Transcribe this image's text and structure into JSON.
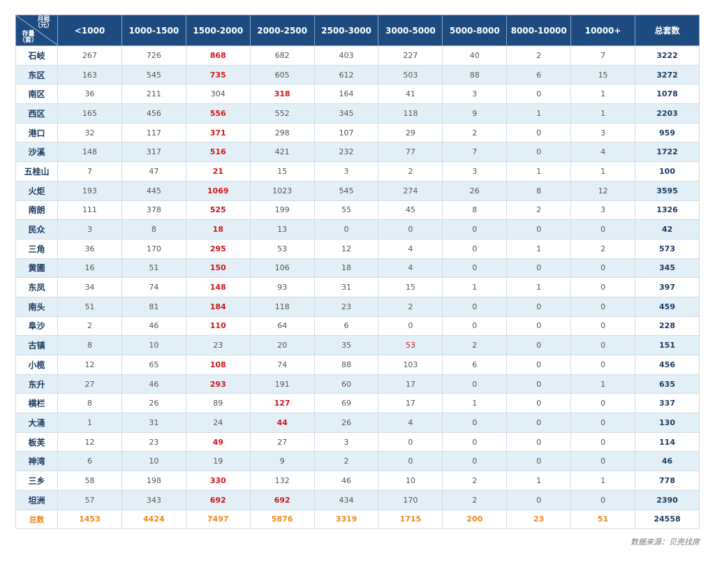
{
  "chart_data": {
    "type": "table",
    "corner_header": {
      "top": "月租\n（元）",
      "bottom": "存量\n（套）"
    },
    "columns": [
      "<1000",
      "1000-1500",
      "1500-2000",
      "2000-2500",
      "2500-3000",
      "3000-5000",
      "5000-8000",
      "8000-10000",
      "10000+",
      "总套数"
    ],
    "rows": [
      {
        "region": "石岐",
        "values": [
          267,
          726,
          868,
          682,
          403,
          227,
          40,
          2,
          7
        ],
        "total": 3222,
        "highlight": [
          2
        ]
      },
      {
        "region": "东区",
        "values": [
          163,
          545,
          735,
          605,
          612,
          503,
          88,
          6,
          15
        ],
        "total": 3272,
        "highlight": [
          2
        ]
      },
      {
        "region": "南区",
        "values": [
          36,
          211,
          304,
          318,
          164,
          41,
          3,
          0,
          1
        ],
        "total": 1078,
        "highlight": [
          3
        ]
      },
      {
        "region": "西区",
        "values": [
          165,
          456,
          556,
          552,
          345,
          118,
          9,
          1,
          1
        ],
        "total": 2203,
        "highlight": [
          2
        ]
      },
      {
        "region": "港口",
        "values": [
          32,
          117,
          371,
          298,
          107,
          29,
          2,
          0,
          3
        ],
        "total": 959,
        "highlight": [
          2
        ]
      },
      {
        "region": "沙溪",
        "values": [
          148,
          317,
          516,
          421,
          232,
          77,
          7,
          0,
          4
        ],
        "total": 1722,
        "highlight": [
          2
        ]
      },
      {
        "region": "五桂山",
        "values": [
          7,
          47,
          21,
          15,
          3,
          2,
          3,
          1,
          1
        ],
        "total": 100,
        "highlight": [
          2
        ]
      },
      {
        "region": "火炬",
        "values": [
          193,
          445,
          1069,
          1023,
          545,
          274,
          26,
          8,
          12
        ],
        "total": 3595,
        "highlight": [
          2
        ]
      },
      {
        "region": "南朗",
        "values": [
          111,
          378,
          525,
          199,
          55,
          45,
          8,
          2,
          3
        ],
        "total": 1326,
        "highlight": [
          2
        ]
      },
      {
        "region": "民众",
        "values": [
          3,
          8,
          18,
          13,
          0,
          0,
          0,
          0,
          0
        ],
        "total": 42,
        "highlight": [
          2
        ]
      },
      {
        "region": "三角",
        "values": [
          36,
          170,
          295,
          53,
          12,
          4,
          0,
          1,
          2
        ],
        "total": 573,
        "highlight": [
          2
        ]
      },
      {
        "region": "黄圃",
        "values": [
          16,
          51,
          150,
          106,
          18,
          4,
          0,
          0,
          0
        ],
        "total": 345,
        "highlight": [
          2
        ]
      },
      {
        "region": "东凤",
        "values": [
          34,
          74,
          148,
          93,
          31,
          15,
          1,
          1,
          0
        ],
        "total": 397,
        "highlight": [
          2
        ]
      },
      {
        "region": "南头",
        "values": [
          51,
          81,
          184,
          118,
          23,
          2,
          0,
          0,
          0
        ],
        "total": 459,
        "highlight": [
          2
        ]
      },
      {
        "region": "阜沙",
        "values": [
          2,
          46,
          110,
          64,
          6,
          0,
          0,
          0,
          0
        ],
        "total": 228,
        "highlight": [
          2
        ]
      },
      {
        "region": "古镇",
        "values": [
          8,
          10,
          23,
          20,
          35,
          53,
          2,
          0,
          0
        ],
        "total": 151,
        "highlight_light": [
          5
        ]
      },
      {
        "region": "小榄",
        "values": [
          12,
          65,
          108,
          74,
          88,
          103,
          6,
          0,
          0
        ],
        "total": 456,
        "highlight": [
          2
        ]
      },
      {
        "region": "东升",
        "values": [
          27,
          46,
          293,
          191,
          60,
          17,
          0,
          0,
          1
        ],
        "total": 635,
        "highlight": [
          2
        ]
      },
      {
        "region": "横栏",
        "values": [
          8,
          26,
          89,
          127,
          69,
          17,
          1,
          0,
          0
        ],
        "total": 337,
        "highlight": [
          3
        ]
      },
      {
        "region": "大涌",
        "values": [
          1,
          31,
          24,
          44,
          26,
          4,
          0,
          0,
          0
        ],
        "total": 130,
        "highlight": [
          3
        ]
      },
      {
        "region": "板芙",
        "values": [
          12,
          23,
          49,
          27,
          3,
          0,
          0,
          0,
          0
        ],
        "total": 114,
        "highlight": [
          2
        ]
      },
      {
        "region": "神湾",
        "values": [
          6,
          10,
          19,
          9,
          2,
          0,
          0,
          0,
          0
        ],
        "total": 46
      },
      {
        "region": "三乡",
        "values": [
          58,
          198,
          330,
          132,
          46,
          10,
          2,
          1,
          1
        ],
        "total": 778,
        "highlight": [
          2
        ]
      },
      {
        "region": "坦洲",
        "values": [
          57,
          343,
          692,
          692,
          434,
          170,
          2,
          0,
          0
        ],
        "total": 2390,
        "highlight": [
          2,
          3
        ]
      }
    ],
    "summary": {
      "label": "总数",
      "values": [
        1453,
        4424,
        7497,
        5876,
        3319,
        1715,
        200,
        23,
        51
      ],
      "total": 24558
    },
    "colors": {
      "header_bg": "#1d4b80",
      "stripe": "#e3eff6",
      "highlight": "#d0161b",
      "summary": "#f08a1c",
      "region": "#1d3c63"
    }
  },
  "source_note": "数据来源：贝壳找房"
}
